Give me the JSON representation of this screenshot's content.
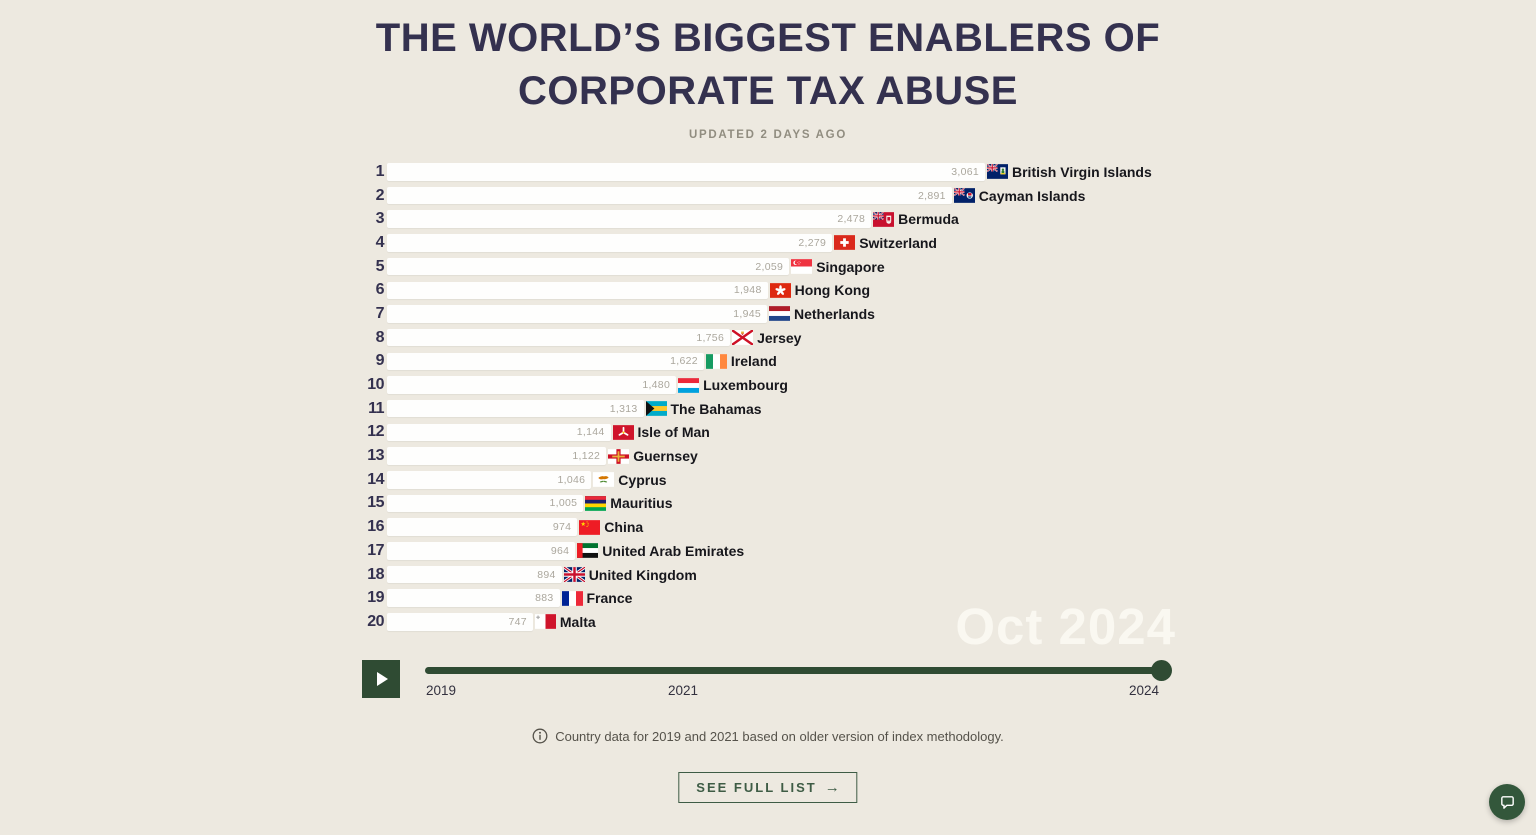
{
  "header": {
    "title_line1": "THE WORLD’S BIGGEST ENABLERS OF",
    "title_line2": "CORPORATE TAX ABUSE",
    "updated": "UPDATED 2 DAYS AGO"
  },
  "chart_data": {
    "type": "bar",
    "orientation": "horizontal",
    "title": "THE WORLD’S BIGGEST ENABLERS OF CORPORATE TAX ABUSE",
    "date_label": "Oct 2024",
    "value_range": [
      0,
      3061
    ],
    "items": [
      {
        "rank": 1,
        "country": "British Virgin Islands",
        "value": 3061,
        "value_label": "3,061",
        "flag_icon": "flag-british-virgin-islands"
      },
      {
        "rank": 2,
        "country": "Cayman Islands",
        "value": 2891,
        "value_label": "2,891",
        "flag_icon": "flag-cayman-islands"
      },
      {
        "rank": 3,
        "country": "Bermuda",
        "value": 2478,
        "value_label": "2,478",
        "flag_icon": "flag-bermuda"
      },
      {
        "rank": 4,
        "country": "Switzerland",
        "value": 2279,
        "value_label": "2,279",
        "flag_icon": "flag-switzerland"
      },
      {
        "rank": 5,
        "country": "Singapore",
        "value": 2059,
        "value_label": "2,059",
        "flag_icon": "flag-singapore"
      },
      {
        "rank": 6,
        "country": "Hong Kong",
        "value": 1948,
        "value_label": "1,948",
        "flag_icon": "flag-hong-kong"
      },
      {
        "rank": 7,
        "country": "Netherlands",
        "value": 1945,
        "value_label": "1,945",
        "flag_icon": "flag-netherlands"
      },
      {
        "rank": 8,
        "country": "Jersey",
        "value": 1756,
        "value_label": "1,756",
        "flag_icon": "flag-jersey"
      },
      {
        "rank": 9,
        "country": "Ireland",
        "value": 1622,
        "value_label": "1,622",
        "flag_icon": "flag-ireland"
      },
      {
        "rank": 10,
        "country": "Luxembourg",
        "value": 1480,
        "value_label": "1,480",
        "flag_icon": "flag-luxembourg"
      },
      {
        "rank": 11,
        "country": "The Bahamas",
        "value": 1313,
        "value_label": "1,313",
        "flag_icon": "flag-bahamas"
      },
      {
        "rank": 12,
        "country": "Isle of Man",
        "value": 1144,
        "value_label": "1,144",
        "flag_icon": "flag-isle-of-man"
      },
      {
        "rank": 13,
        "country": "Guernsey",
        "value": 1122,
        "value_label": "1,122",
        "flag_icon": "flag-guernsey"
      },
      {
        "rank": 14,
        "country": "Cyprus",
        "value": 1046,
        "value_label": "1,046",
        "flag_icon": "flag-cyprus"
      },
      {
        "rank": 15,
        "country": "Mauritius",
        "value": 1005,
        "value_label": "1,005",
        "flag_icon": "flag-mauritius"
      },
      {
        "rank": 16,
        "country": "China",
        "value": 974,
        "value_label": "974",
        "flag_icon": "flag-china"
      },
      {
        "rank": 17,
        "country": "United Arab Emirates",
        "value": 964,
        "value_label": "964",
        "flag_icon": "flag-uae"
      },
      {
        "rank": 18,
        "country": "United Kingdom",
        "value": 894,
        "value_label": "894",
        "flag_icon": "flag-united-kingdom"
      },
      {
        "rank": 19,
        "country": "France",
        "value": 883,
        "value_label": "883",
        "flag_icon": "flag-france"
      },
      {
        "rank": 20,
        "country": "Malta",
        "value": 747,
        "value_label": "747",
        "flag_icon": "flag-malta"
      }
    ]
  },
  "timeline": {
    "ticks": [
      "2019",
      "2021",
      "2024"
    ],
    "current": "Oct 2024"
  },
  "footer": {
    "note": "Country data for 2019 and 2021 based on older version of index methodology.",
    "button_label": "SEE FULL LIST",
    "button_arrow": "→"
  },
  "colors": {
    "background": "#EDE9E0",
    "bar": "#FEFEFD",
    "title": "#34314F",
    "value_text": "#ABA79D",
    "accent_green": "#2F4B33",
    "date_overlay": "#FAF8F1"
  }
}
